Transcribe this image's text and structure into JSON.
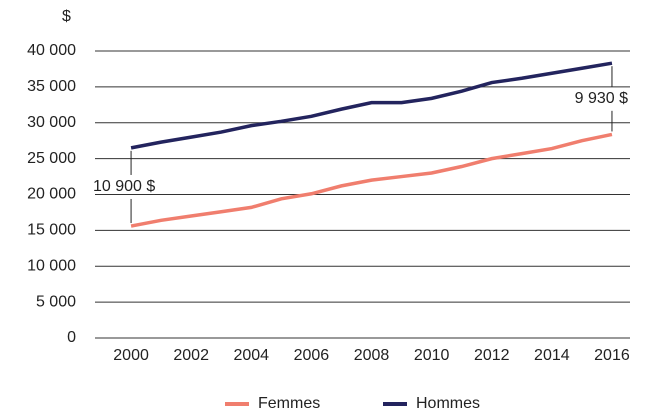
{
  "chart_data": {
    "type": "line",
    "y_label": "$",
    "x": [
      2000,
      2001,
      2002,
      2003,
      2004,
      2005,
      2006,
      2007,
      2008,
      2009,
      2010,
      2011,
      2012,
      2013,
      2014,
      2015,
      2016
    ],
    "series": [
      {
        "name": "Femmes",
        "color": "#f07e6e",
        "values": [
          15600,
          16400,
          17000,
          17600,
          18200,
          19400,
          20100,
          21200,
          22000,
          22500,
          23000,
          23900,
          25000,
          25700,
          26400,
          27500,
          28370
        ]
      },
      {
        "name": "Hommes",
        "color": "#23245e",
        "values": [
          26500,
          27300,
          28000,
          28700,
          29600,
          30200,
          30900,
          31900,
          32800,
          32800,
          33400,
          34400,
          35600,
          36200,
          36900,
          37600,
          38300
        ]
      }
    ],
    "annotations": [
      {
        "text": "10 900 $",
        "x": 2000
      },
      {
        "text": "9 930 $",
        "x": 2016
      }
    ],
    "xlim": [
      1998.8,
      2016.6
    ],
    "xticks": [
      2000,
      2002,
      2004,
      2006,
      2008,
      2010,
      2012,
      2014,
      2016
    ],
    "ylim": [
      0,
      40000
    ],
    "yticks": [
      0,
      {
        "value": 5000,
        "label": "5 000"
      },
      {
        "value": 10000,
        "label": "10 000"
      },
      {
        "value": 15000,
        "label": "15 000"
      },
      {
        "value": 20000,
        "label": "20 000"
      },
      {
        "value": 25000,
        "label": "25 000"
      },
      {
        "value": 30000,
        "label": "30 000"
      },
      {
        "value": 35000,
        "label": "35 000"
      },
      {
        "value": 40000,
        "label": "40 000"
      }
    ],
    "grid": true,
    "legend": "bottom"
  }
}
